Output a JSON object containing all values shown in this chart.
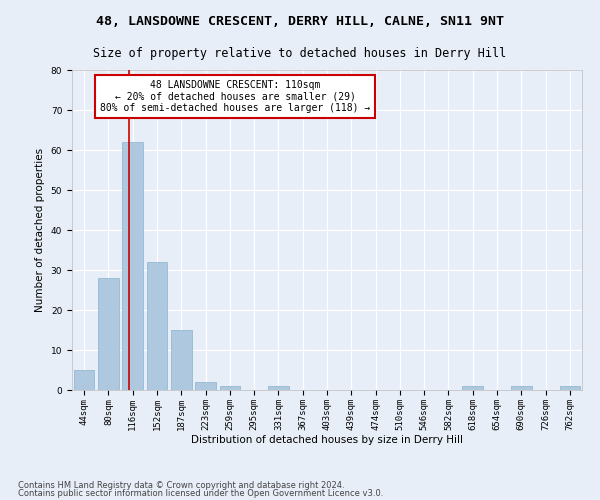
{
  "title1": "48, LANSDOWNE CRESCENT, DERRY HILL, CALNE, SN11 9NT",
  "title2": "Size of property relative to detached houses in Derry Hill",
  "xlabel": "Distribution of detached houses by size in Derry Hill",
  "ylabel": "Number of detached properties",
  "bin_labels": [
    "44sqm",
    "80sqm",
    "116sqm",
    "152sqm",
    "187sqm",
    "223sqm",
    "259sqm",
    "295sqm",
    "331sqm",
    "367sqm",
    "403sqm",
    "439sqm",
    "474sqm",
    "510sqm",
    "546sqm",
    "582sqm",
    "618sqm",
    "654sqm",
    "690sqm",
    "726sqm",
    "762sqm"
  ],
  "bar_values": [
    5,
    28,
    62,
    32,
    15,
    2,
    1,
    0,
    1,
    0,
    0,
    0,
    0,
    0,
    0,
    0,
    1,
    0,
    1,
    0,
    1
  ],
  "bar_color": "#aec8e0",
  "bar_edge_color": "#8ab4cc",
  "property_line_x": 1.85,
  "annotation_text": "48 LANSDOWNE CRESCENT: 110sqm\n← 20% of detached houses are smaller (29)\n80% of semi-detached houses are larger (118) →",
  "annotation_box_color": "#ffffff",
  "annotation_box_edge_color": "#cc0000",
  "vline_color": "#cc0000",
  "ylim": [
    0,
    80
  ],
  "yticks": [
    0,
    10,
    20,
    30,
    40,
    50,
    60,
    70,
    80
  ],
  "footer1": "Contains HM Land Registry data © Crown copyright and database right 2024.",
  "footer2": "Contains public sector information licensed under the Open Government Licence v3.0.",
  "bg_color": "#e8eef8",
  "plot_bg_color": "#e8eef8",
  "grid_color": "#ffffff",
  "title1_fontsize": 9.5,
  "title2_fontsize": 8.5,
  "axis_label_fontsize": 7.5,
  "tick_fontsize": 6.5,
  "annotation_fontsize": 7,
  "footer_fontsize": 6
}
